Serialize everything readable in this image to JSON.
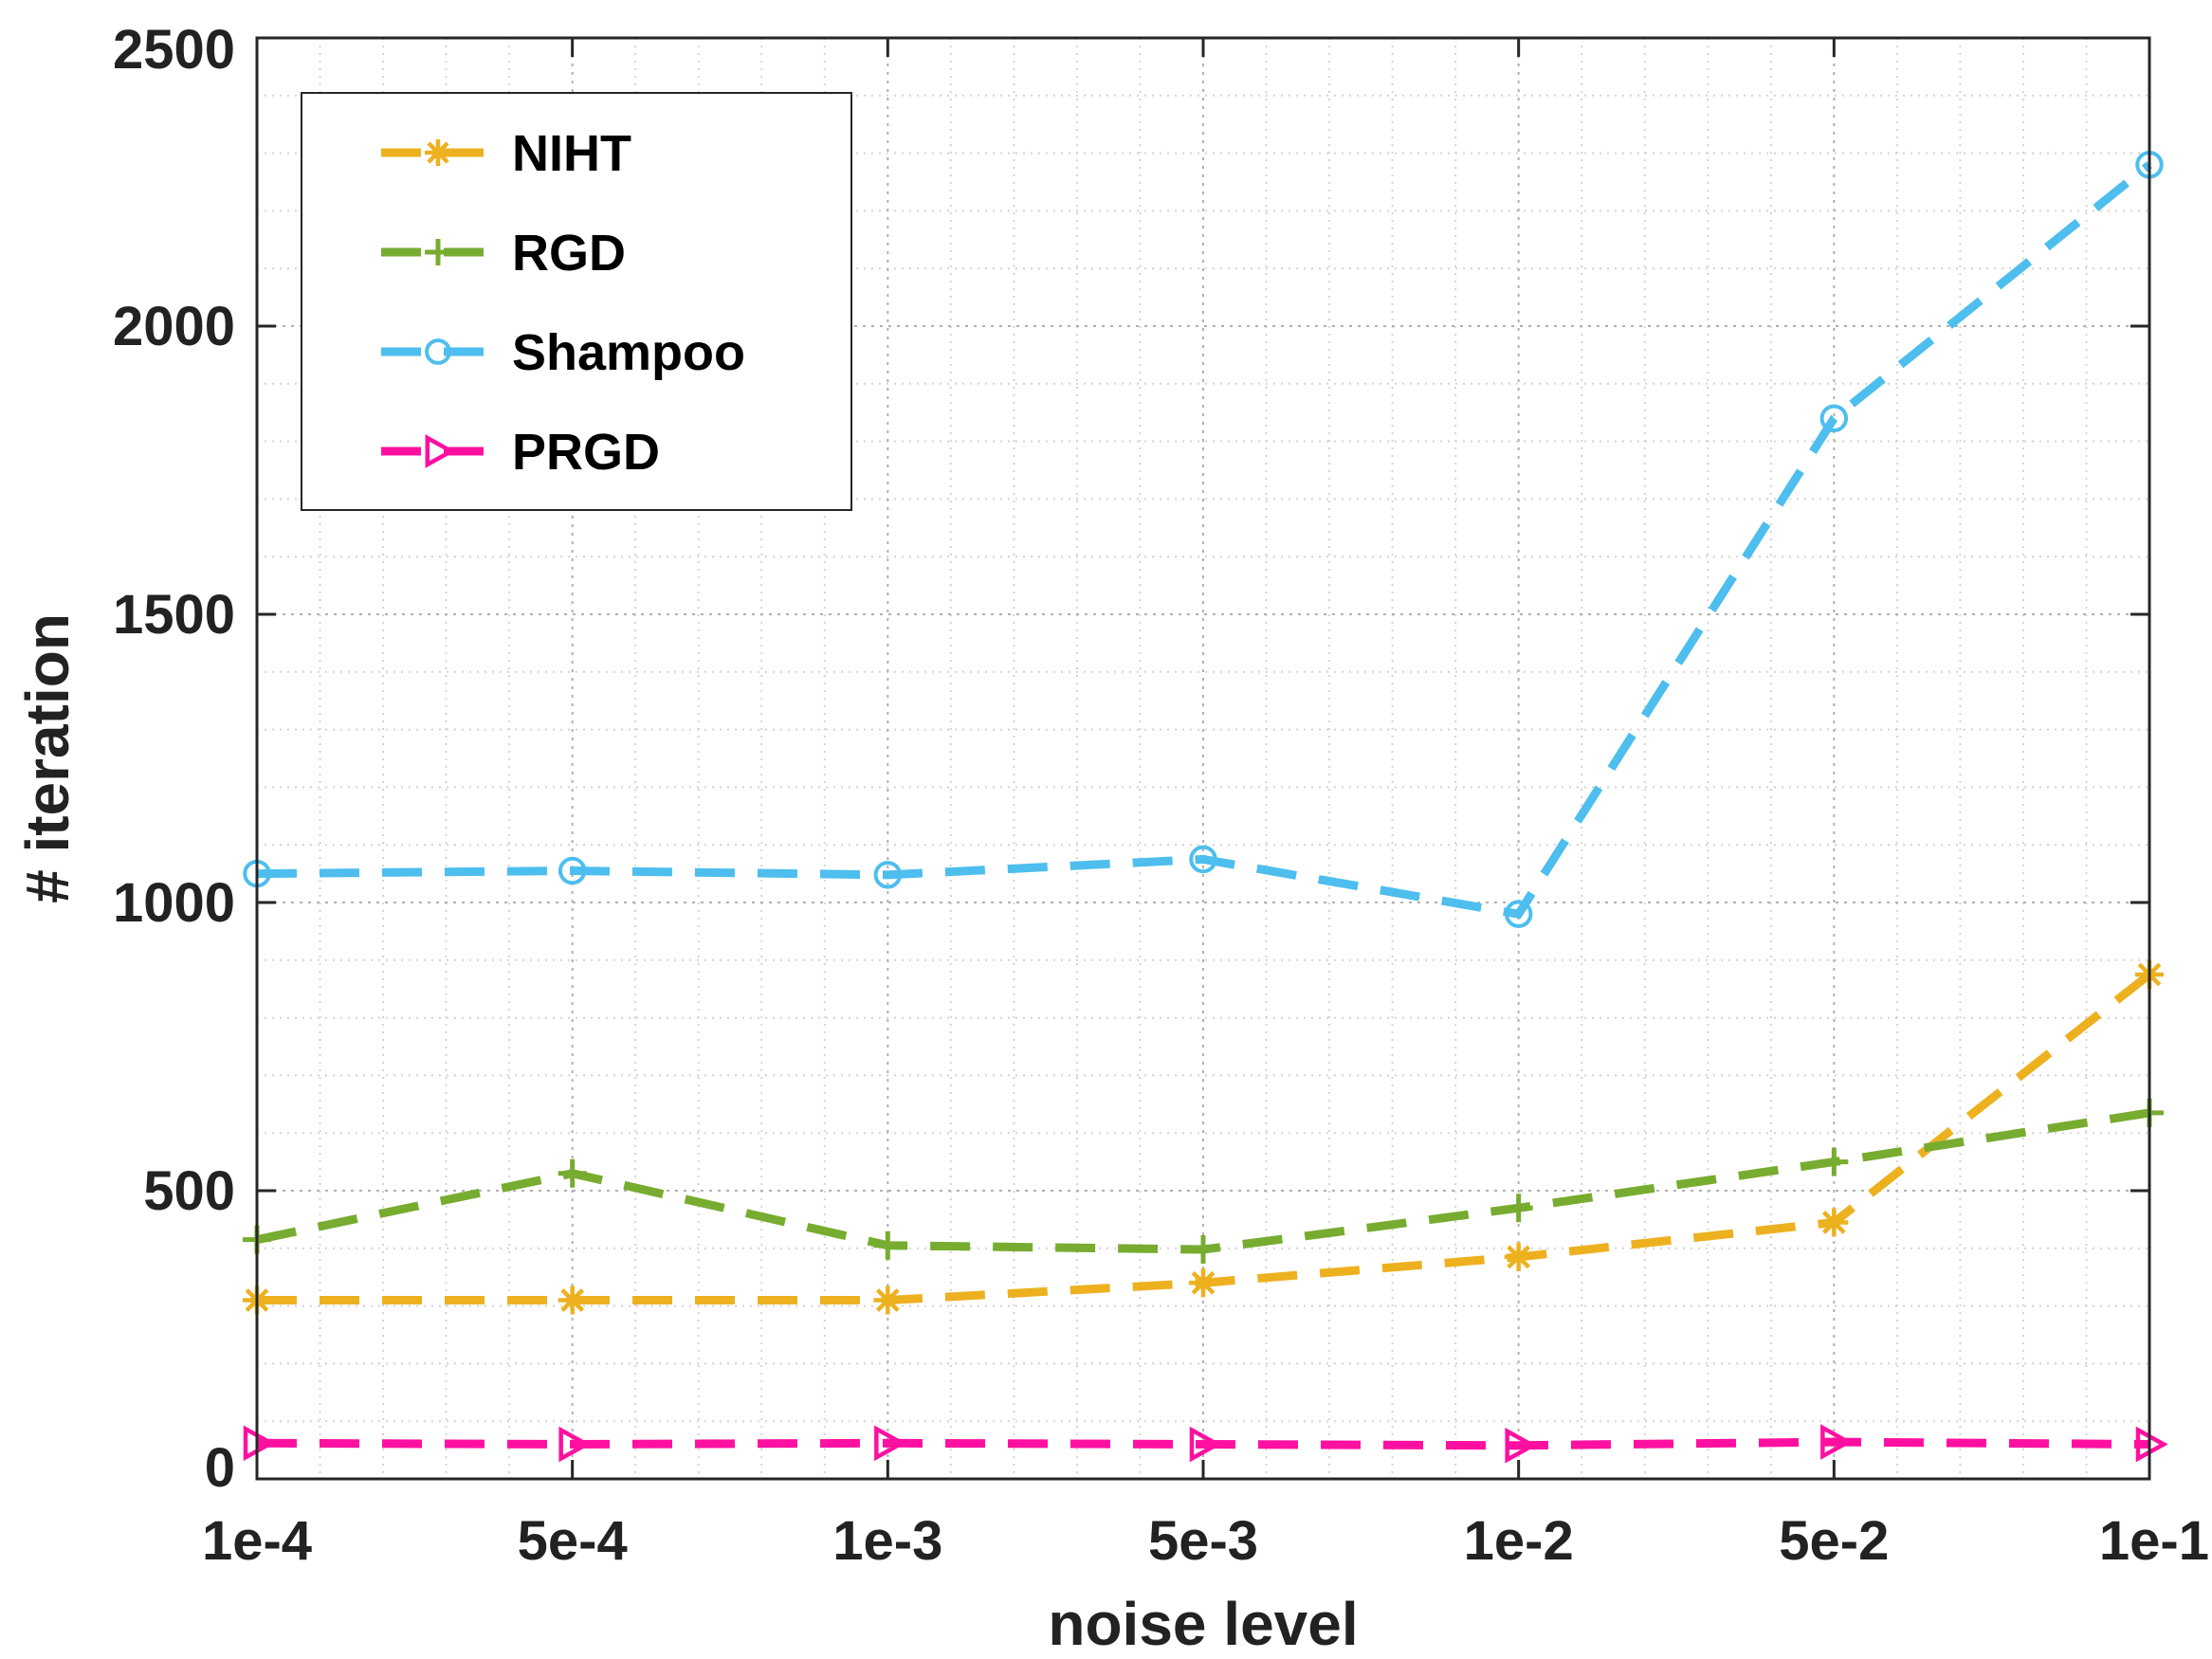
{
  "chart_data": {
    "type": "line",
    "title": "",
    "xlabel": "noise level",
    "ylabel": "# iteration",
    "categories": [
      "1e-4",
      "5e-4",
      "1e-3",
      "5e-3",
      "1e-2",
      "5e-2",
      "1e-1"
    ],
    "ylim": [
      0,
      2500
    ],
    "yticks": [
      0,
      500,
      1000,
      1500,
      2000,
      2500
    ],
    "grid": true,
    "legend_position": "top-left",
    "series": [
      {
        "name": "NIHT",
        "color": "#EDB120",
        "marker": "asterisk",
        "values": [
          310,
          310,
          310,
          340,
          385,
          445,
          875
        ]
      },
      {
        "name": "RGD",
        "color": "#77AC30",
        "marker": "plus",
        "values": [
          415,
          530,
          405,
          398,
          470,
          550,
          635
        ]
      },
      {
        "name": "Shampoo",
        "color": "#4DBEEE",
        "marker": "circle",
        "values": [
          1050,
          1055,
          1048,
          1075,
          980,
          1840,
          2280
        ]
      },
      {
        "name": "PRGD",
        "color": "#FF10A0",
        "marker": "triangle-right",
        "values": [
          62,
          60,
          62,
          60,
          58,
          64,
          60
        ]
      }
    ]
  }
}
